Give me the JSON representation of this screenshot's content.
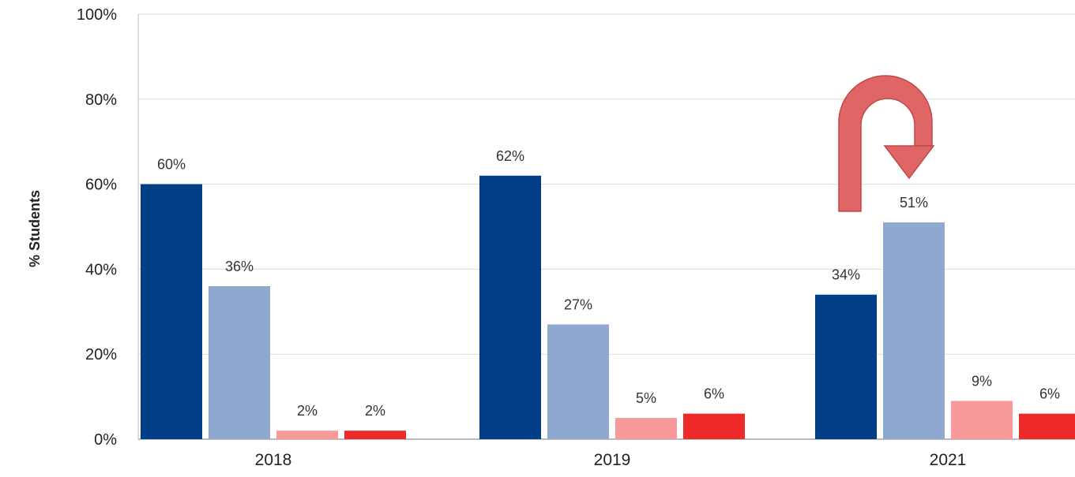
{
  "chart_data": {
    "type": "bar",
    "title": "",
    "xlabel": "",
    "ylabel": "% Students",
    "ylim": [
      0,
      100
    ],
    "yticks": [
      "0%",
      "20%",
      "40%",
      "60%",
      "80%",
      "100%"
    ],
    "ytick_values": [
      0,
      20,
      40,
      60,
      80,
      100
    ],
    "categories": [
      "2018",
      "2019",
      "2021"
    ],
    "grid": true,
    "legend": "none",
    "series": [
      {
        "color": "#003f87",
        "values": [
          60,
          62,
          34
        ],
        "labels": [
          "60%",
          "62%",
          "34%"
        ]
      },
      {
        "color": "#8fa8cf",
        "values": [
          36,
          27,
          51
        ],
        "labels": [
          "36%",
          "27%",
          "51%"
        ]
      },
      {
        "color": "#f99a9a",
        "values": [
          2,
          5,
          9
        ],
        "labels": [
          "2%",
          "5%",
          "9%"
        ]
      },
      {
        "color": "#ee2a2a",
        "values": [
          2,
          6,
          6
        ],
        "labels": [
          "2%",
          "6%",
          "6%"
        ]
      }
    ],
    "annotations": [
      {
        "type": "u-turn-arrow",
        "category": "2021",
        "color": "#e06666"
      }
    ]
  }
}
